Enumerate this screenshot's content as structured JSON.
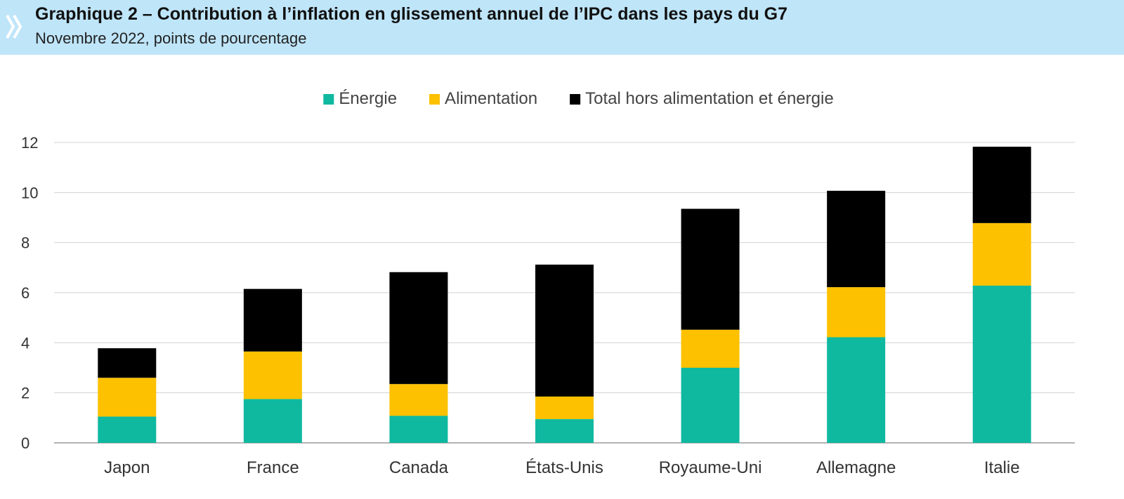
{
  "header": {
    "title": "Graphique 2 – Contribution à l’inflation en glissement annuel de l’IPC dans les pays du G7",
    "subtitle": "Novembre 2022, points de pourcentage",
    "icon": "double-chevron-right-icon"
  },
  "chart_data": {
    "type": "bar",
    "stacked": true,
    "categories": [
      "Japon",
      "France",
      "Canada",
      "États-Unis",
      "Royaume-Uni",
      "Allemagne",
      "Italie"
    ],
    "series": [
      {
        "name": "Énergie",
        "color": "#0fb9a0",
        "values": [
          1.05,
          1.75,
          1.08,
          0.95,
          3.0,
          4.22,
          6.28
        ]
      },
      {
        "name": "Alimentation",
        "color": "#fdc100",
        "values": [
          1.55,
          1.9,
          1.27,
          0.9,
          1.52,
          2.0,
          2.5
        ]
      },
      {
        "name": "Total hors alimentation et énergie",
        "color": "#000000",
        "values": [
          1.18,
          2.5,
          4.47,
          5.27,
          4.83,
          3.85,
          3.05
        ]
      }
    ],
    "yticks": [
      "0",
      "2",
      "4",
      "6",
      "8",
      "10",
      "12"
    ],
    "ylim": [
      0,
      12
    ],
    "grid": true,
    "legend": "top-center"
  }
}
